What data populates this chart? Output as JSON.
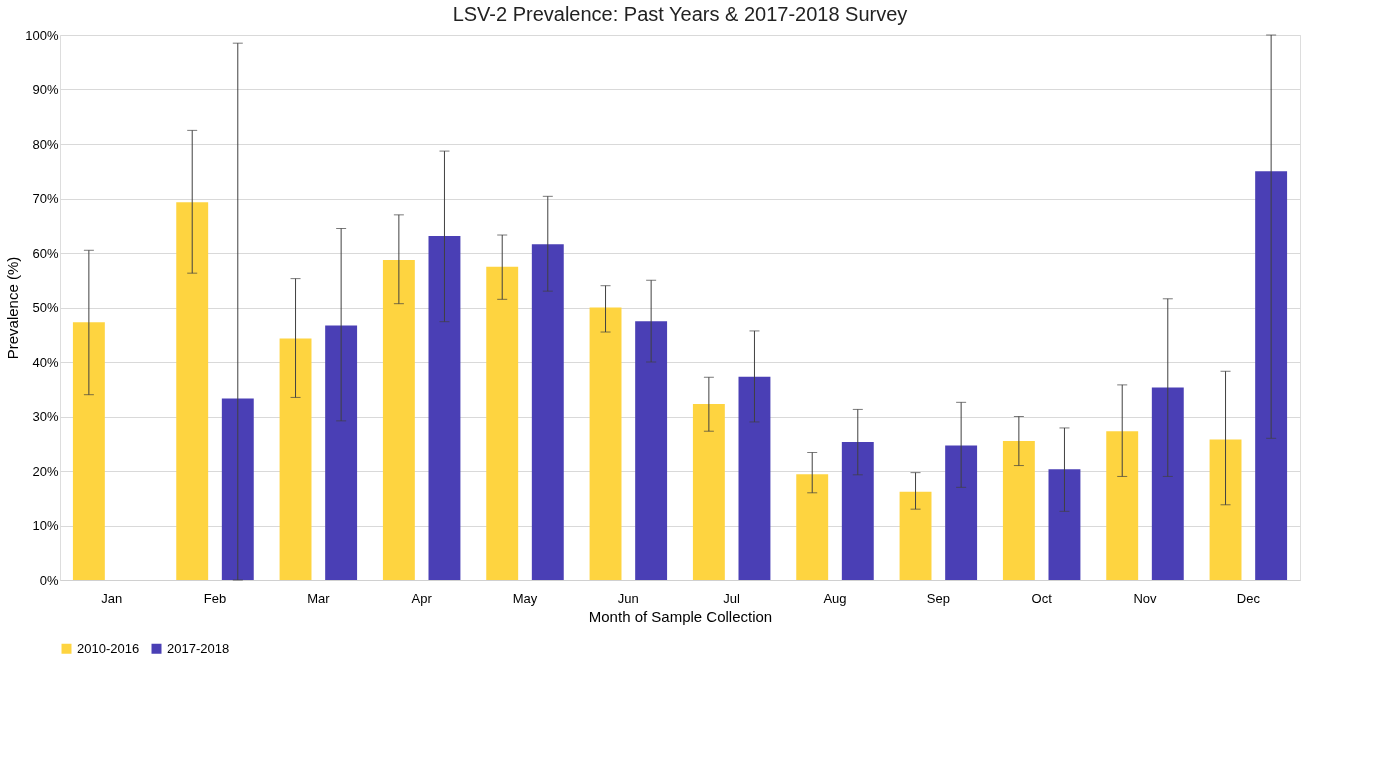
{
  "chart_data": {
    "type": "bar",
    "title": "LSV-2 Prevalence: Past Years & 2017-2018 Survey",
    "xlabel": "Month of Sample Collection",
    "ylabel": "Prevalence (%)",
    "categories": [
      "Jan",
      "Feb",
      "Mar",
      "Apr",
      "May",
      "Jun",
      "Jul",
      "Aug",
      "Sep",
      "Oct",
      "Nov",
      "Dec"
    ],
    "series": [
      {
        "name": "2010-2016",
        "color": "#fed440",
        "values": [
          47.3,
          69.3,
          44.3,
          58.7,
          57.5,
          50,
          32.3,
          19.4,
          16.2,
          25.5,
          27.3,
          25.8
        ],
        "errors": [
          [
            34,
            60.5
          ],
          [
            56.3,
            82.5
          ],
          [
            33.5,
            55.3
          ],
          [
            50.7,
            67
          ],
          [
            51.5,
            63.3
          ],
          [
            45.5,
            54
          ],
          [
            27.3,
            37.2
          ],
          [
            16,
            23.4
          ],
          [
            13,
            19.7
          ],
          [
            21,
            30
          ],
          [
            19,
            35.8
          ],
          [
            13.8,
            38.3
          ]
        ]
      },
      {
        "name": "2017-2018",
        "color": "#4a3fb5",
        "values": [
          null,
          33.3,
          46.7,
          63.1,
          61.6,
          47.5,
          37.3,
          25.3,
          24.7,
          20.3,
          35.3,
          75
        ],
        "errors": [
          null,
          [
            0,
            98.5
          ],
          [
            29.2,
            64.5
          ],
          [
            47.4,
            78.7
          ],
          [
            53,
            70.4
          ],
          [
            40,
            55
          ],
          [
            29,
            45.7
          ],
          [
            19.3,
            31.3
          ],
          [
            17,
            32.6
          ],
          [
            12.6,
            27.9
          ],
          [
            19,
            51.6
          ],
          [
            26,
            100
          ]
        ]
      }
    ],
    "ylim": [
      0,
      100
    ],
    "yticks": [
      {
        "value": 0,
        "label": "0%"
      },
      {
        "value": 10,
        "label": "10%"
      },
      {
        "value": 20,
        "label": "20%"
      },
      {
        "value": 30,
        "label": "30%"
      },
      {
        "value": 40,
        "label": "40%"
      },
      {
        "value": 50,
        "label": "50%"
      },
      {
        "value": 60,
        "label": "60%"
      },
      {
        "value": 70,
        "label": "70%"
      },
      {
        "value": 80,
        "label": "80%"
      },
      {
        "value": 90,
        "label": "90%"
      },
      {
        "value": 100,
        "label": "100%"
      }
    ],
    "grid": "y",
    "legend": "bottom"
  }
}
